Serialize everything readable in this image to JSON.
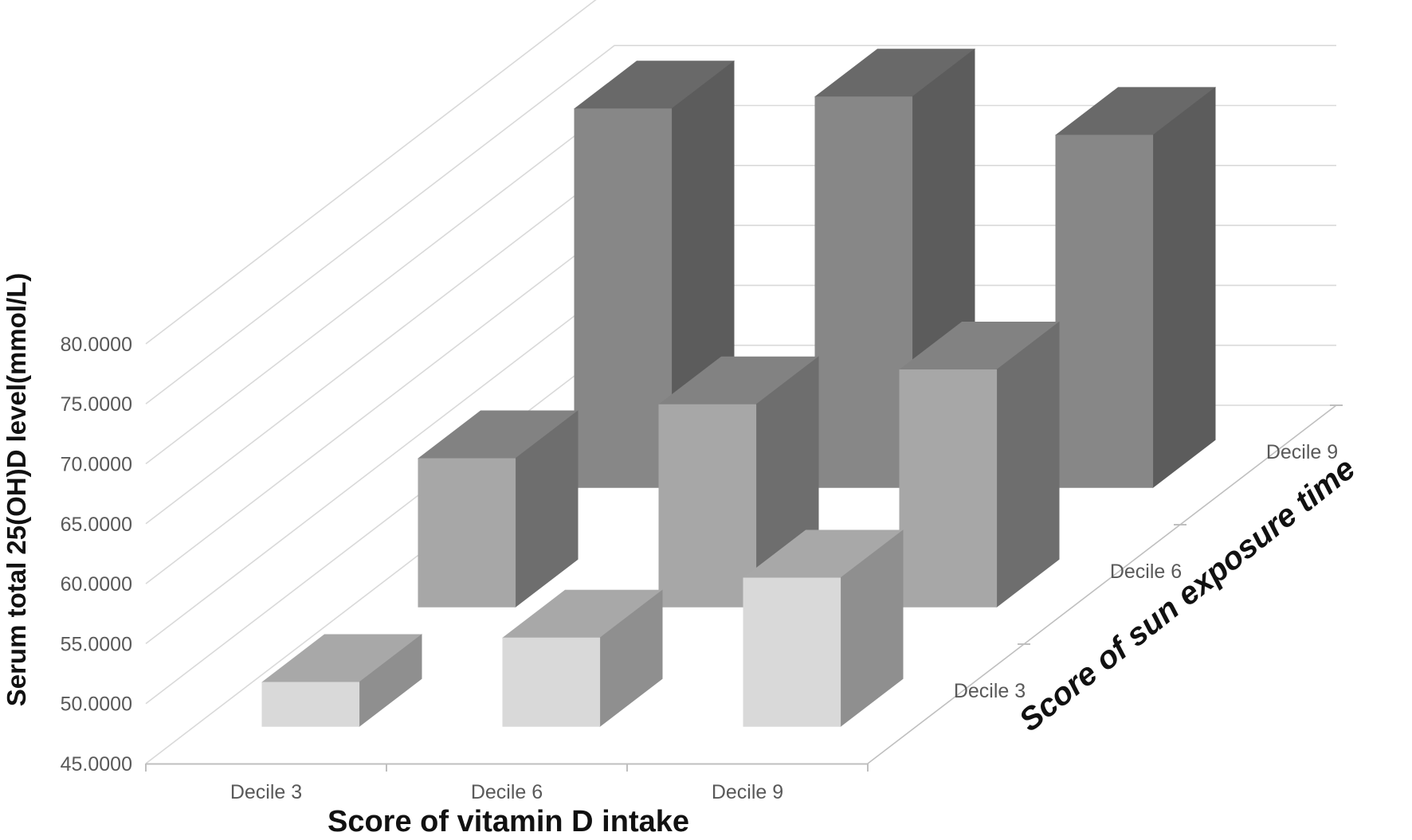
{
  "chart_data": {
    "type": "bar",
    "subtype": "3d-column",
    "title": "",
    "xlabel": "Score of vitamin D intake",
    "ylabel": "Serum total 25(OH)D level(mmol/L)",
    "zlabel": "Score of sun exposure time",
    "x_categories": [
      "Decile 3",
      "Decile 6",
      "Decile 9"
    ],
    "z_categories": [
      "Decile 3",
      "Decile 6",
      "Decile 9"
    ],
    "y_ticks": [
      "45.0000",
      "50.0000",
      "55.0000",
      "60.0000",
      "65.0000",
      "70.0000",
      "75.0000",
      "80.0000"
    ],
    "ylim": [
      45,
      85
    ],
    "grid": true,
    "legend_position": "none",
    "series": [
      {
        "name": "Decile 3",
        "z_category": "Decile 3",
        "values": [
          48.7,
          52.4,
          57.4
        ]
      },
      {
        "name": "Decile 6",
        "z_category": "Decile 6",
        "values": [
          57.4,
          61.9,
          64.8
        ]
      },
      {
        "name": "Decile 9",
        "z_category": "Decile 9",
        "values": [
          76.6,
          77.6,
          74.4
        ]
      }
    ],
    "value_unit": "mmol/L"
  },
  "colors": {
    "background": "#ffffff",
    "gridline": "#d9d9d9",
    "axis_line": "#bfbfbf",
    "tick_text": "#595959",
    "title_text": "#111111",
    "rows": [
      {
        "front": "#d9d9d9",
        "top": "#a8a8a8",
        "side": "#8f8f8f"
      },
      {
        "front": "#a7a7a7",
        "top": "#828282",
        "side": "#6e6e6e"
      },
      {
        "front": "#878787",
        "top": "#696969",
        "side": "#5c5c5c"
      }
    ]
  }
}
